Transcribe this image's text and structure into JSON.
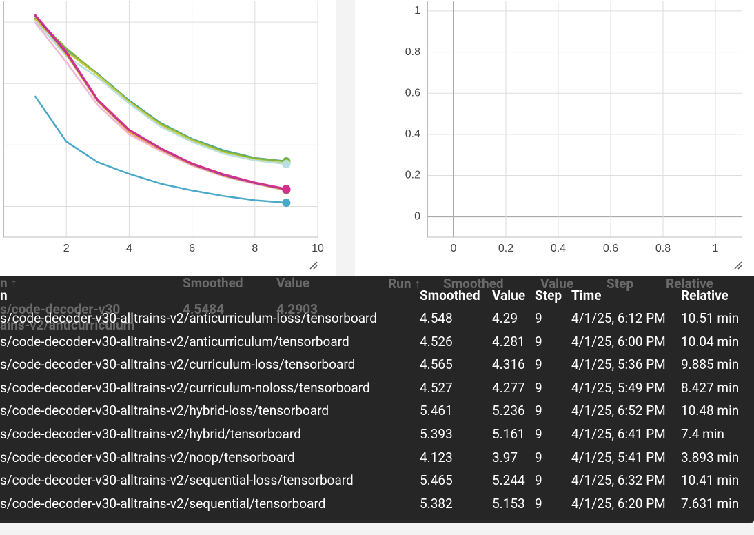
{
  "charts": [
    {
      "type": "line",
      "x": [
        1,
        2,
        3,
        4,
        5,
        6,
        7,
        8,
        9
      ],
      "xlim": [
        0,
        10
      ],
      "xticks": [
        2,
        4,
        6,
        8,
        10
      ],
      "ylim": [
        3,
        10.7
      ],
      "ygrid": [
        4,
        6,
        8,
        10
      ],
      "series": [
        {
          "color": "#3ea0b6",
          "values": [
            10.2,
            9.1,
            8.32,
            7.45,
            6.72,
            6.2,
            5.83,
            5.58,
            5.47
          ]
        },
        {
          "color": "#7cb342",
          "values": [
            10.15,
            9.15,
            8.3,
            7.42,
            6.7,
            6.18,
            5.8,
            5.57,
            5.46
          ]
        },
        {
          "color": "#c6c83a",
          "values": [
            10.1,
            9.05,
            8.28,
            7.4,
            6.65,
            6.15,
            5.75,
            5.52,
            5.39
          ]
        },
        {
          "color": "#b8e0e0",
          "values": [
            10.05,
            8.9,
            8.2,
            7.35,
            6.6,
            6.1,
            5.72,
            5.5,
            5.38
          ]
        },
        {
          "color": "#f1b6d8",
          "values": [
            10.0,
            8.7,
            7.3,
            6.35,
            5.8,
            5.33,
            4.98,
            4.73,
            4.53
          ]
        },
        {
          "color": "#f2a33a",
          "values": [
            10.2,
            8.95,
            7.42,
            6.42,
            5.85,
            5.36,
            5.0,
            4.75,
            4.53
          ]
        },
        {
          "color": "#8e44ad",
          "values": [
            10.22,
            9.0,
            7.45,
            6.48,
            5.88,
            5.38,
            5.02,
            4.76,
            4.55
          ]
        },
        {
          "color": "#d6308a",
          "values": [
            10.25,
            9.05,
            7.48,
            6.5,
            5.9,
            5.4,
            5.05,
            4.78,
            4.57
          ]
        },
        {
          "color": "#4aa8c8",
          "values": [
            7.6,
            6.11,
            5.44,
            5.06,
            4.74,
            4.52,
            4.34,
            4.2,
            4.12
          ]
        }
      ]
    },
    {
      "type": "line",
      "xlim": [
        -0.1,
        1.1
      ],
      "xticks": [
        0,
        0.2,
        0.4,
        0.6,
        0.8,
        1
      ],
      "ylim": [
        -0.1,
        1.05
      ],
      "yticks": [
        0,
        0.2,
        0.4,
        0.6,
        0.8,
        1
      ],
      "series": []
    }
  ],
  "tooltip": {
    "ghost": [
      "n ↑",
      "Smoothed",
      "Value",
      "Run ↑",
      "Smoothed",
      "Value",
      "Step",
      "Relative",
      "s/code-decoder-v30",
      "4.5484",
      "4.2903",
      "ains-v2/anticurriculum"
    ],
    "columns": [
      "n",
      "Smoothed",
      "Value",
      "Step",
      "Time",
      "Relative"
    ],
    "rows": [
      [
        "s/code-decoder-v30-alltrains-v2/anticurriculum-loss/tensorboard",
        4.548,
        4.29,
        9,
        "4/1/25, 6:12 PM",
        "10.51 min"
      ],
      [
        "s/code-decoder-v30-alltrains-v2/anticurriculum/tensorboard",
        4.526,
        4.281,
        9,
        "4/1/25, 6:00 PM",
        "10.04 min"
      ],
      [
        "s/code-decoder-v30-alltrains-v2/curriculum-loss/tensorboard",
        4.565,
        4.316,
        9,
        "4/1/25, 5:36 PM",
        "9.885 min"
      ],
      [
        "s/code-decoder-v30-alltrains-v2/curriculum-noloss/tensorboard",
        4.527,
        4.277,
        9,
        "4/1/25, 5:49 PM",
        "8.427 min"
      ],
      [
        "s/code-decoder-v30-alltrains-v2/hybrid-loss/tensorboard",
        5.461,
        5.236,
        9,
        "4/1/25, 6:52 PM",
        "10.48 min"
      ],
      [
        "s/code-decoder-v30-alltrains-v2/hybrid/tensorboard",
        5.393,
        5.161,
        9,
        "4/1/25, 6:41 PM",
        "7.4 min"
      ],
      [
        "s/code-decoder-v30-alltrains-v2/noop/tensorboard",
        4.123,
        3.97,
        9,
        "4/1/25, 5:41 PM",
        "3.893 min"
      ],
      [
        "s/code-decoder-v30-alltrains-v2/sequential-loss/tensorboard",
        5.465,
        5.244,
        9,
        "4/1/25, 6:32 PM",
        "10.41 min"
      ],
      [
        "s/code-decoder-v30-alltrains-v2/sequential/tensorboard",
        5.382,
        5.153,
        9,
        "4/1/25, 6:20 PM",
        "7.631 min"
      ]
    ]
  }
}
